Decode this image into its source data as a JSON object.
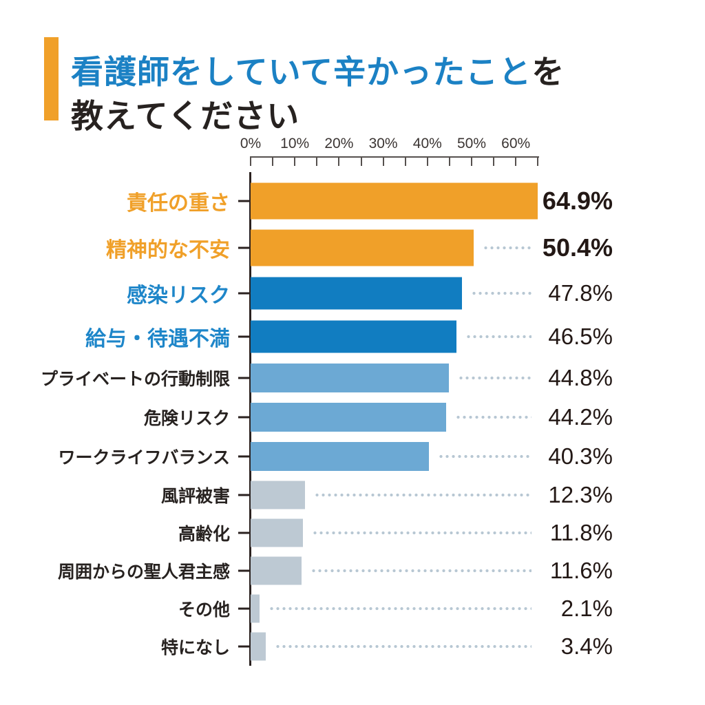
{
  "title": {
    "highlight": "看護師をしていて辛かったこと",
    "suffix": "を",
    "line2": "教えてください"
  },
  "x_axis": {
    "tick_labels": [
      "0%",
      "10%",
      "20%",
      "30%",
      "40%",
      "50%",
      "60%"
    ],
    "label_step_percent": 10,
    "minor_tick_step_percent": 5,
    "max_percent": 65
  },
  "chart_data": {
    "type": "bar",
    "orientation": "horizontal",
    "title": "看護師をしていて辛かったことを教えてください",
    "xlabel": "",
    "ylabel": "",
    "xlim": [
      0,
      65
    ],
    "x_tick_labels": [
      "0%",
      "10%",
      "20%",
      "30%",
      "40%",
      "50%",
      "60%"
    ],
    "grid": false,
    "legend": false,
    "categories": [
      "責任の重さ",
      "精神的な不安",
      "感染リスク",
      "給与・待遇不満",
      "プライベートの行動制限",
      "危険リスク",
      "ワークライフバランス",
      "風評被害",
      "高齢化",
      "周囲からの聖人君主感",
      "その他",
      "特になし"
    ],
    "values": [
      64.9,
      50.4,
      47.8,
      46.5,
      44.8,
      44.2,
      40.3,
      12.3,
      11.8,
      11.6,
      2.1,
      3.4
    ],
    "bars": [
      {
        "label": "責任の重さ",
        "value": 64.9,
        "display": "64.9%",
        "group": "orange",
        "label_color": "orange",
        "value_bold": true
      },
      {
        "label": "精神的な不安",
        "value": 50.4,
        "display": "50.4%",
        "group": "orange",
        "label_color": "orange",
        "value_bold": true
      },
      {
        "label": "感染リスク",
        "value": 47.8,
        "display": "47.8%",
        "group": "blue",
        "label_color": "blue",
        "value_bold": false
      },
      {
        "label": "給与・待遇不満",
        "value": 46.5,
        "display": "46.5%",
        "group": "blue",
        "label_color": "blue",
        "value_bold": false
      },
      {
        "label": "プライベートの行動制限",
        "value": 44.8,
        "display": "44.8%",
        "group": "light",
        "label_color": "dark",
        "value_bold": false
      },
      {
        "label": "危険リスク",
        "value": 44.2,
        "display": "44.2%",
        "group": "light",
        "label_color": "dark",
        "value_bold": false
      },
      {
        "label": "ワークライフバランス",
        "value": 40.3,
        "display": "40.3%",
        "group": "light",
        "label_color": "dark",
        "value_bold": false
      },
      {
        "label": "風評被害",
        "value": 12.3,
        "display": "12.3%",
        "group": "gray",
        "label_color": "dark",
        "value_bold": false
      },
      {
        "label": "高齢化",
        "value": 11.8,
        "display": "11.8%",
        "group": "gray",
        "label_color": "dark",
        "value_bold": false
      },
      {
        "label": "周囲からの聖人君主感",
        "value": 11.6,
        "display": "11.6%",
        "group": "gray",
        "label_color": "dark",
        "value_bold": false
      },
      {
        "label": "その他",
        "value": 2.1,
        "display": "2.1%",
        "group": "gray",
        "label_color": "dark",
        "value_bold": false
      },
      {
        "label": "特になし",
        "value": 3.4,
        "display": "3.4%",
        "group": "gray",
        "label_color": "dark",
        "value_bold": false
      }
    ]
  },
  "colors": {
    "orange": "#F0A029",
    "blue": "#117DC1",
    "light": "#6CA9D4",
    "gray": "#BDC9D3",
    "label_blue": "#1E86C9",
    "title_blue": "#1B81C4",
    "dark_text": "#272220",
    "value_text": "#231815",
    "axis_line": "#2B2220",
    "ruler": "#55504E",
    "leader_dot": "#B7C7D3",
    "accent": "#F0A029",
    "background": "#FFFFFF"
  }
}
